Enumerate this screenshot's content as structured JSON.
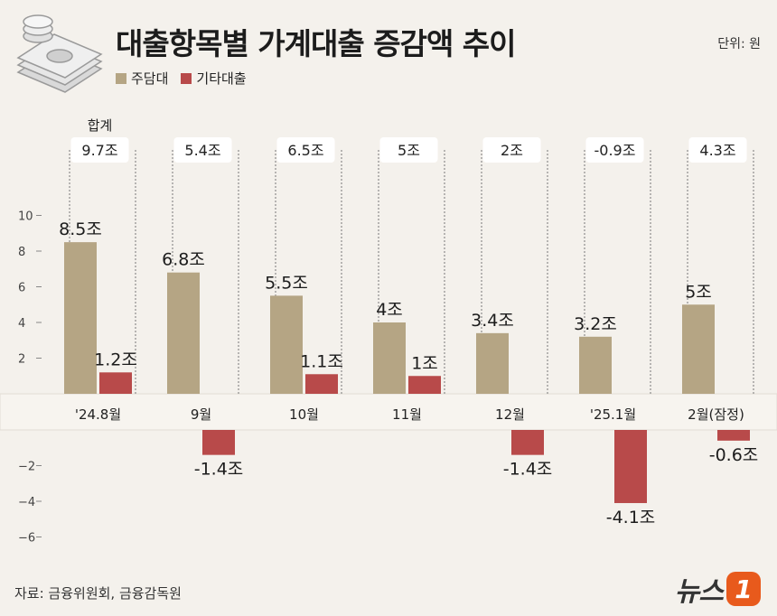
{
  "title": "대출항목별 가계대출 증감액 추이",
  "unit": "단위: 원",
  "legend": {
    "mortgage": "주담대",
    "other": "기타대출"
  },
  "total_header": "합계",
  "source": "자료: 금융위원회, 금융감독원",
  "logo": {
    "text": "뉴스",
    "badge": "1"
  },
  "colors": {
    "mortgage": "#b5a584",
    "other": "#b84a4a",
    "background": "#f4f1ec",
    "band": "#f7f4ef",
    "guide": "#777777"
  },
  "chart_data": {
    "type": "bar",
    "categories": [
      "'24.8월",
      "9월",
      "10월",
      "11월",
      "12월",
      "'25.1월",
      "2월(잠정)"
    ],
    "series": [
      {
        "name": "주담대",
        "values": [
          8.5,
          6.8,
          5.5,
          4,
          3.4,
          3.2,
          5
        ],
        "labels": [
          "8.5조",
          "6.8조",
          "5.5조",
          "4조",
          "3.4조",
          "3.2조",
          "5조"
        ]
      },
      {
        "name": "기타대출",
        "values": [
          1.2,
          -1.4,
          1.1,
          1,
          -1.4,
          -4.1,
          -0.6
        ],
        "labels": [
          "1.2조",
          "-1.4조",
          "1.1조",
          "1조",
          "-1.4조",
          "-4.1조",
          "-0.6조"
        ]
      }
    ],
    "totals": [
      "9.7조",
      "5.4조",
      "6.5조",
      "5조",
      "2조",
      "-0.9조",
      "4.3조"
    ],
    "yticks": [
      10,
      8,
      6,
      4,
      2,
      -2,
      -4,
      -6
    ],
    "ylim": [
      -6.5,
      10.5
    ],
    "xlabel": "",
    "ylabel": "",
    "grid": false,
    "legend_position": "top-left"
  }
}
